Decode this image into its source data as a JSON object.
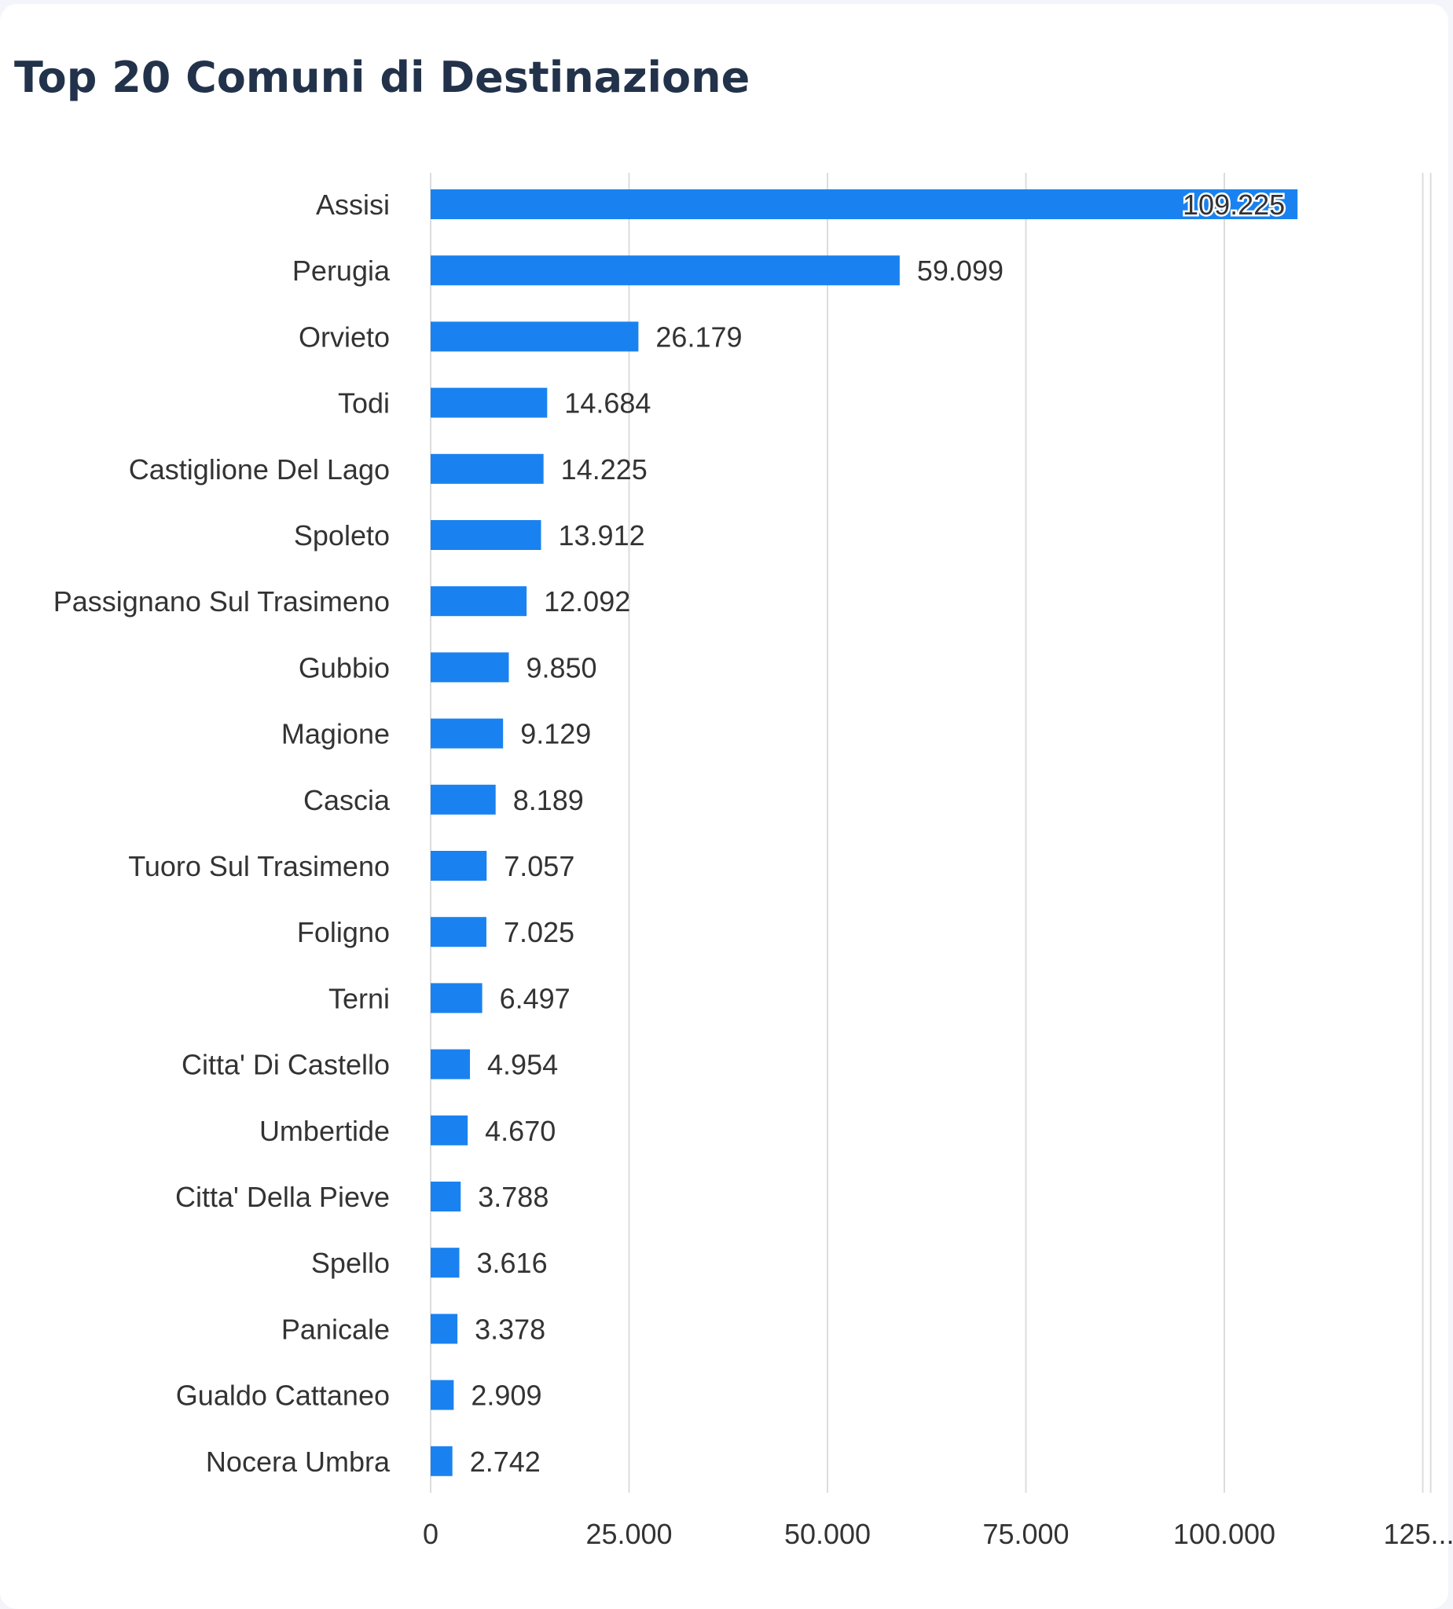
{
  "title": "Top 20 Comuni di Destinazione",
  "chart_data": {
    "type": "bar",
    "orientation": "horizontal",
    "title": "Top 20 Comuni di Destinazione",
    "xlabel": "",
    "ylabel": "",
    "categories": [
      "Assisi",
      "Perugia",
      "Orvieto",
      "Todi",
      "Castiglione Del Lago",
      "Spoleto",
      "Passignano Sul Trasimeno",
      "Gubbio",
      "Magione",
      "Cascia",
      "Tuoro Sul Trasimeno",
      "Foligno",
      "Terni",
      "Citta' Di Castello",
      "Umbertide",
      "Citta' Della Pieve",
      "Spello",
      "Panicale",
      "Gualdo Cattaneo",
      "Nocera Umbra"
    ],
    "values": [
      109225,
      59099,
      26179,
      14684,
      14225,
      13912,
      12092,
      9850,
      9129,
      8189,
      7057,
      7025,
      6497,
      4954,
      4670,
      3788,
      3616,
      3378,
      2909,
      2742
    ],
    "value_labels": [
      "109.225",
      "59.099",
      "26.179",
      "14.684",
      "14.225",
      "13.912",
      "12.092",
      "9.850",
      "9.129",
      "8.189",
      "7.057",
      "7.025",
      "6.497",
      "4.954",
      "4.670",
      "3.788",
      "3.616",
      "3.378",
      "2.909",
      "2.742"
    ],
    "xlim": [
      0,
      125000
    ],
    "x_ticks": [
      0,
      25000,
      50000,
      75000,
      100000,
      125000
    ],
    "x_tick_labels": [
      "0",
      "25.000",
      "50.000",
      "75.000",
      "100.000",
      "125...."
    ],
    "grid": "vertical",
    "bar_color": "#1a82f0",
    "gridline_color": "#dcdcdc",
    "label_color": "#333333",
    "title_color": "#22324a",
    "background": "#ffffff"
  }
}
